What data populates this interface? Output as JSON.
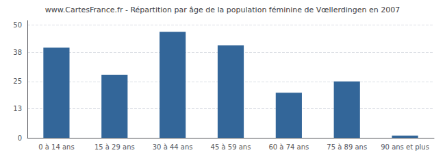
{
  "chart_data": {
    "type": "bar",
    "title": "www.CartesFrance.fr - Répartition par âge de la population féminine de Vœllerdingen en 2007",
    "categories": [
      "0 à 14 ans",
      "15 à 29 ans",
      "30 à 44 ans",
      "45 à 59 ans",
      "60 à 74 ans",
      "75 à 89 ans",
      "90 ans et plus"
    ],
    "values": [
      40,
      28,
      47,
      41,
      20,
      25,
      1
    ],
    "color": "#336699",
    "ylim": [
      0,
      52
    ],
    "yticks": [
      0,
      13,
      25,
      38,
      50
    ],
    "grid": true
  }
}
